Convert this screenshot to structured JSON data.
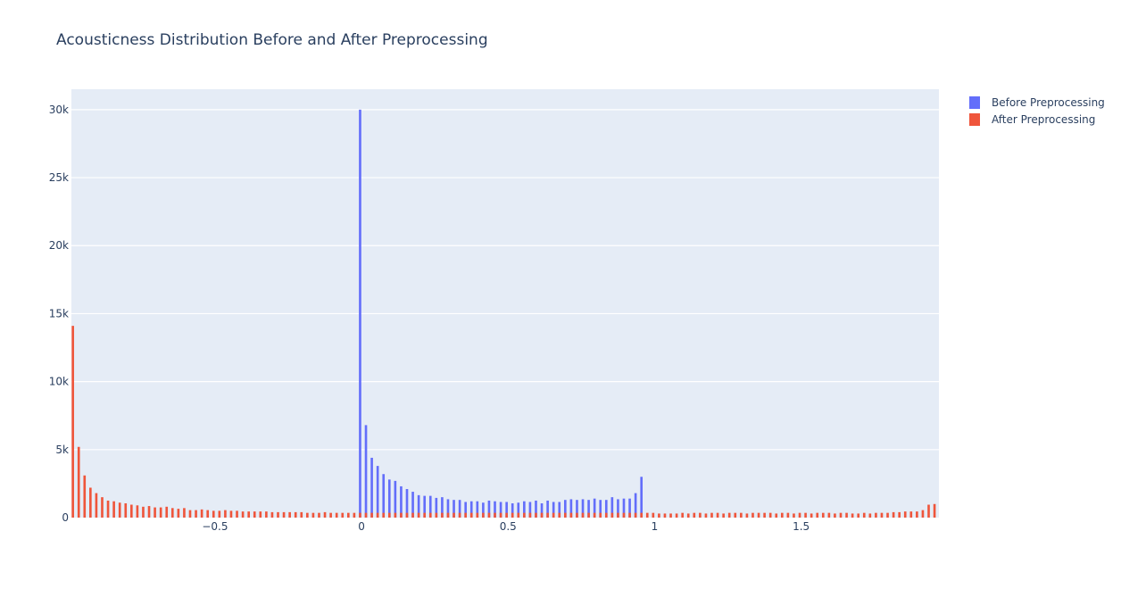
{
  "chart_data": {
    "type": "bar",
    "title": "Acousticness Distribution Before and After Preprocessing",
    "xlabel": "",
    "ylabel": "",
    "xlim": [
      -0.99,
      1.97
    ],
    "ylim": [
      0,
      31500
    ],
    "x_ticks": [
      -0.5,
      0,
      0.5,
      1,
      1.5
    ],
    "x_tick_labels": [
      "−0.5",
      "0",
      "0.5",
      "1",
      "1.5"
    ],
    "y_ticks": [
      0,
      5000,
      10000,
      15000,
      20000,
      25000,
      30000
    ],
    "y_tick_labels": [
      "0",
      "5k",
      "10k",
      "15k",
      "20k",
      "25k",
      "30k"
    ],
    "grid": true,
    "legend_position": "top-right",
    "series": [
      {
        "name": "Before Preprocessing",
        "color": "#636efa",
        "x": [
          0,
          0.02,
          0.04,
          0.06,
          0.08,
          0.1,
          0.12,
          0.14,
          0.16,
          0.18,
          0.2,
          0.22,
          0.24,
          0.26,
          0.28,
          0.3,
          0.32,
          0.34,
          0.36,
          0.38,
          0.4,
          0.42,
          0.44,
          0.46,
          0.48,
          0.5,
          0.52,
          0.54,
          0.56,
          0.58,
          0.6,
          0.62,
          0.64,
          0.66,
          0.68,
          0.7,
          0.72,
          0.74,
          0.76,
          0.78,
          0.8,
          0.82,
          0.84,
          0.86,
          0.88,
          0.9,
          0.92,
          0.94,
          0.96,
          0.98
        ],
        "values": [
          30000,
          6800,
          4400,
          3800,
          3200,
          2800,
          2700,
          2300,
          2100,
          1900,
          1650,
          1600,
          1600,
          1450,
          1500,
          1350,
          1300,
          1300,
          1150,
          1200,
          1200,
          1100,
          1250,
          1200,
          1150,
          1150,
          1050,
          1100,
          1200,
          1150,
          1250,
          1050,
          1250,
          1150,
          1150,
          1300,
          1350,
          1300,
          1350,
          1300,
          1400,
          1300,
          1300,
          1500,
          1350,
          1400,
          1400,
          1800,
          3000,
          0
        ]
      },
      {
        "name": "After Preprocessing",
        "color": "#ef553b",
        "x": [
          -0.99,
          -0.97,
          -0.95,
          -0.93,
          -0.91,
          -0.89,
          -0.87,
          -0.85,
          -0.83,
          -0.81,
          -0.79,
          -0.77,
          -0.75,
          -0.73,
          -0.71,
          -0.69,
          -0.67,
          -0.65,
          -0.63,
          -0.61,
          -0.59,
          -0.57,
          -0.55,
          -0.53,
          -0.51,
          -0.49,
          -0.47,
          -0.45,
          -0.43,
          -0.41,
          -0.39,
          -0.37,
          -0.35,
          -0.33,
          -0.31,
          -0.29,
          -0.27,
          -0.25,
          -0.23,
          -0.21,
          -0.19,
          -0.17,
          -0.15,
          -0.13,
          -0.11,
          -0.09,
          -0.07,
          -0.05,
          -0.03,
          -0.01,
          0.01,
          0.03,
          0.05,
          0.07,
          0.09,
          0.11,
          0.13,
          0.15,
          0.17,
          0.19,
          0.21,
          0.23,
          0.25,
          0.27,
          0.29,
          0.31,
          0.33,
          0.35,
          0.37,
          0.39,
          0.41,
          0.43,
          0.45,
          0.47,
          0.49,
          0.51,
          0.53,
          0.55,
          0.57,
          0.59,
          0.61,
          0.63,
          0.65,
          0.67,
          0.69,
          0.71,
          0.73,
          0.75,
          0.77,
          0.79,
          0.81,
          0.83,
          0.85,
          0.87,
          0.89,
          0.91,
          0.93,
          0.95,
          0.97,
          0.99,
          1.01,
          1.03,
          1.05,
          1.07,
          1.09,
          1.11,
          1.13,
          1.15,
          1.17,
          1.19,
          1.21,
          1.23,
          1.25,
          1.27,
          1.29,
          1.31,
          1.33,
          1.35,
          1.37,
          1.39,
          1.41,
          1.43,
          1.45,
          1.47,
          1.49,
          1.51,
          1.53,
          1.55,
          1.57,
          1.59,
          1.61,
          1.63,
          1.65,
          1.67,
          1.69,
          1.71,
          1.73,
          1.75,
          1.77,
          1.79,
          1.81,
          1.83,
          1.85,
          1.87,
          1.89,
          1.91,
          1.93,
          1.95
        ],
        "values": [
          14100,
          5200,
          3100,
          2200,
          1800,
          1500,
          1250,
          1200,
          1100,
          1050,
          950,
          900,
          800,
          850,
          750,
          750,
          800,
          700,
          650,
          700,
          550,
          550,
          600,
          550,
          500,
          500,
          550,
          500,
          500,
          450,
          450,
          450,
          450,
          450,
          400,
          400,
          400,
          400,
          400,
          400,
          350,
          350,
          350,
          400,
          350,
          350,
          350,
          350,
          350,
          350,
          350,
          350,
          350,
          350,
          350,
          350,
          350,
          350,
          350,
          350,
          350,
          350,
          350,
          350,
          350,
          350,
          350,
          350,
          350,
          350,
          350,
          350,
          350,
          350,
          350,
          350,
          350,
          350,
          350,
          350,
          350,
          350,
          350,
          350,
          350,
          350,
          350,
          350,
          350,
          350,
          350,
          350,
          350,
          350,
          350,
          350,
          350,
          350,
          350,
          350,
          300,
          300,
          300,
          300,
          350,
          300,
          350,
          350,
          300,
          350,
          350,
          300,
          350,
          350,
          350,
          300,
          350,
          350,
          350,
          350,
          300,
          350,
          350,
          300,
          350,
          350,
          300,
          350,
          350,
          350,
          300,
          350,
          350,
          300,
          300,
          350,
          300,
          350,
          350,
          350,
          400,
          400,
          450,
          450,
          450,
          550,
          950,
          1000
        ]
      }
    ]
  }
}
